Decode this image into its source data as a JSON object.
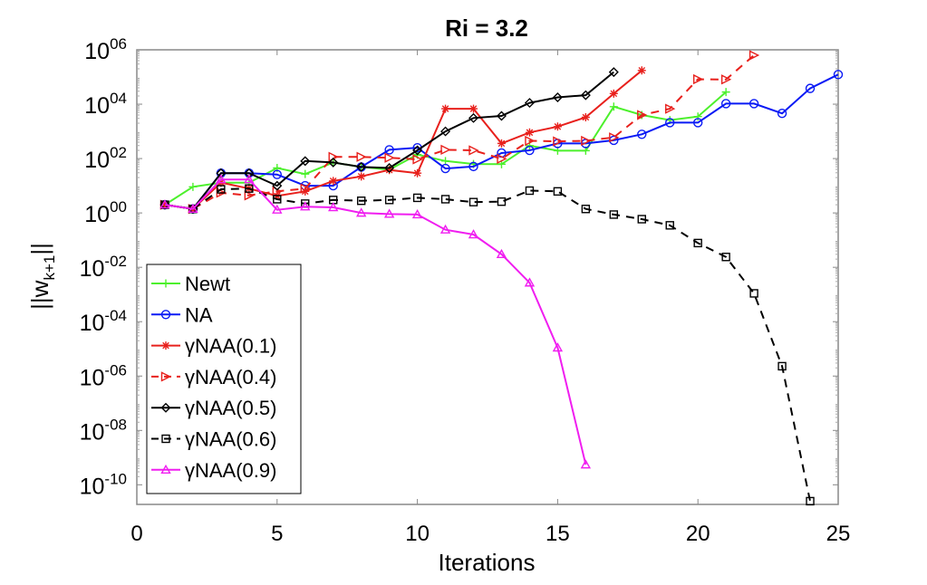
{
  "chart_data": {
    "type": "line",
    "title": "Ri = 3.2",
    "xlabel": "Iterations",
    "ylabel": {
      "main": "||w",
      "sub": "k+1",
      "end": "||"
    },
    "xlim": [
      0,
      25
    ],
    "ylim": [
      1.9e-11,
      1000000.0
    ],
    "yscale": "log",
    "grid": false,
    "legend_position": "bottom-left",
    "xticks": [
      0,
      5,
      10,
      15,
      20,
      25
    ],
    "xtick_labels": [
      "0",
      "5",
      "10",
      "15",
      "20",
      "25"
    ],
    "yticks": [
      1000000.0,
      10000.0,
      100.0,
      1,
      0.01,
      0.0001,
      1e-06,
      1e-08,
      1e-10
    ],
    "ytick_labels": [
      {
        "base": "10",
        "exp": "06"
      },
      {
        "base": "10",
        "exp": "04"
      },
      {
        "base": "10",
        "exp": "02"
      },
      {
        "base": "10",
        "exp": "00"
      },
      {
        "base": "10",
        "exp": "-02"
      },
      {
        "base": "10",
        "exp": "-04"
      },
      {
        "base": "10",
        "exp": "-06"
      },
      {
        "base": "10",
        "exp": "-08"
      },
      {
        "base": "10",
        "exp": "-10"
      }
    ],
    "series": [
      {
        "name": "Newt",
        "color": "#4cf02c",
        "dash": false,
        "marker": "plus",
        "x": [
          1,
          2,
          3,
          4,
          5,
          6,
          7,
          8,
          9,
          10,
          11,
          12,
          13,
          14,
          15,
          16,
          17,
          18,
          19,
          20,
          21
        ],
        "y": [
          2.0,
          9.1,
          13,
          13,
          45,
          27,
          72,
          49,
          39,
          140,
          81,
          63,
          62,
          300,
          195,
          195,
          8100,
          4000,
          2600,
          3500,
          28000
        ]
      },
      {
        "name": "NA",
        "color": "#0a1af5",
        "dash": false,
        "marker": "circle",
        "x": [
          1,
          2,
          3,
          4,
          5,
          6,
          7,
          8,
          9,
          10,
          11,
          12,
          13,
          14,
          15,
          16,
          17,
          18,
          19,
          20,
          21,
          22,
          23,
          24,
          25
        ],
        "y": [
          2.0,
          1.4,
          29,
          29,
          26,
          10,
          10,
          49,
          210,
          250,
          43,
          51,
          160,
          200,
          360,
          360,
          470,
          780,
          2100,
          2100,
          10500,
          10500,
          4600,
          38000,
          123000
        ]
      },
      {
        "name": "γNAA(0.1)",
        "color": "#e8201c",
        "dash": false,
        "marker": "star",
        "x": [
          1,
          2,
          3,
          4,
          5,
          6,
          7,
          8,
          9,
          10,
          11,
          12,
          13,
          14,
          15,
          16,
          17,
          18
        ],
        "y": [
          2.0,
          1.4,
          13,
          7.9,
          4.2,
          6.2,
          15,
          22,
          38,
          29,
          6800,
          6800,
          360,
          910,
          1500,
          3300,
          24500,
          174000
        ]
      },
      {
        "name": "γNAA(0.4)",
        "color": "#e8201c",
        "dash": true,
        "marker": "triangle-right",
        "x": [
          1,
          2,
          3,
          4,
          5,
          6,
          7,
          8,
          9,
          10,
          11,
          12,
          13,
          14,
          15,
          16,
          17,
          18,
          19,
          20,
          21,
          22
        ],
        "y": [
          2.0,
          1.4,
          5.5,
          4.4,
          6.2,
          7.9,
          115,
          115,
          107,
          93,
          210,
          200,
          98,
          450,
          430,
          450,
          600,
          4000,
          6800,
          83000,
          81000,
          630000
        ]
      },
      {
        "name": "γNAA(0.5)",
        "color": "#000000",
        "dash": false,
        "marker": "diamond",
        "x": [
          1,
          2,
          3,
          4,
          5,
          6,
          7,
          8,
          9,
          10,
          11,
          12,
          13,
          14,
          15,
          16,
          17
        ],
        "y": [
          2.0,
          1.4,
          29,
          29,
          10,
          81,
          72,
          49,
          45,
          200,
          1000,
          3100,
          3700,
          11200,
          17800,
          21400,
          151000
        ]
      },
      {
        "name": "γNAA(0.6)",
        "color": "#000000",
        "dash": true,
        "marker": "square",
        "x": [
          1,
          2,
          3,
          4,
          5,
          6,
          7,
          8,
          9,
          10,
          11,
          12,
          13,
          14,
          15,
          16,
          17,
          18,
          19,
          20,
          21,
          22,
          23,
          24
        ],
        "y": [
          2.0,
          1.4,
          7.4,
          7.9,
          3.2,
          2.2,
          3.0,
          2.8,
          3.0,
          3.6,
          3.2,
          2.5,
          2.6,
          6.6,
          6.2,
          1.4,
          0.87,
          0.59,
          0.35,
          0.078,
          0.024,
          0.0011,
          2.3e-06,
          2.5e-11
        ]
      },
      {
        "name": "γNAA(0.9)",
        "color": "#f01ef0",
        "dash": false,
        "marker": "triangle-up",
        "x": [
          1,
          2,
          3,
          4,
          5,
          6,
          7,
          8,
          9,
          10,
          11,
          12,
          13,
          14,
          15,
          16
        ],
        "y": [
          2.0,
          1.4,
          17,
          17,
          1.3,
          1.7,
          1.6,
          1.0,
          0.91,
          0.87,
          0.24,
          0.16,
          0.03,
          0.0027,
          1.1e-05,
          5.5e-10
        ]
      }
    ]
  }
}
